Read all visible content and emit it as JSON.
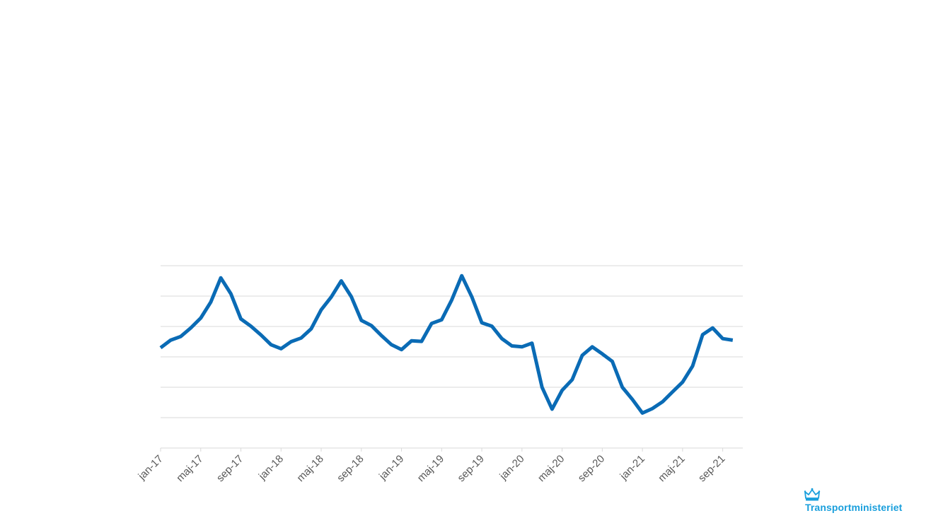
{
  "chart_data": {
    "type": "line",
    "title": "",
    "xlabel": "",
    "ylabel": "",
    "ylim": [
      0,
      6
    ],
    "grid": true,
    "tick_labels": [
      "jan-17",
      "maj-17",
      "sep-17",
      "jan-18",
      "maj-18",
      "sep-18",
      "jan-19",
      "maj-19",
      "sep-19",
      "jan-20",
      "maj-20",
      "sep-20",
      "jan-21",
      "maj-21",
      "sep-21"
    ],
    "x": [
      "jan-17",
      "feb-17",
      "mar-17",
      "apr-17",
      "maj-17",
      "jun-17",
      "jul-17",
      "aug-17",
      "sep-17",
      "okt-17",
      "nov-17",
      "dec-17",
      "jan-18",
      "feb-18",
      "mar-18",
      "apr-18",
      "maj-18",
      "jun-18",
      "jul-18",
      "aug-18",
      "sep-18",
      "okt-18",
      "nov-18",
      "dec-18",
      "jan-19",
      "feb-19",
      "mar-19",
      "apr-19",
      "maj-19",
      "jun-19",
      "jul-19",
      "aug-19",
      "sep-19",
      "okt-19",
      "nov-19",
      "dec-19",
      "jan-20",
      "feb-20",
      "mar-20",
      "apr-20",
      "maj-20",
      "jun-20",
      "jul-20",
      "aug-20",
      "sep-20",
      "okt-20",
      "nov-20",
      "dec-20",
      "jan-21",
      "feb-21",
      "mar-21",
      "apr-21",
      "maj-21",
      "jun-21",
      "jul-21",
      "aug-21",
      "sep-21",
      "okt-21"
    ],
    "series": [
      {
        "color": "#0a6bb5",
        "values": [
          3.3,
          3.55,
          3.67,
          3.95,
          4.28,
          4.8,
          5.6,
          5.08,
          4.25,
          4.01,
          3.72,
          3.4,
          3.27,
          3.5,
          3.62,
          3.92,
          4.55,
          4.97,
          5.5,
          4.98,
          4.2,
          4.03,
          3.7,
          3.4,
          3.24,
          3.53,
          3.51,
          4.1,
          4.22,
          4.87,
          5.67,
          4.98,
          4.12,
          4.01,
          3.6,
          3.36,
          3.33,
          3.45,
          2.0,
          1.28,
          1.9,
          2.25,
          3.05,
          3.33,
          3.1,
          2.85,
          2.0,
          1.6,
          1.15,
          1.3,
          1.52,
          1.85,
          2.17,
          2.7,
          3.73,
          3.95,
          3.6,
          3.55
        ]
      }
    ]
  },
  "logo": {
    "text": "Transportministeriet",
    "icon": "crown-icon",
    "color": "#1a9fdc"
  }
}
